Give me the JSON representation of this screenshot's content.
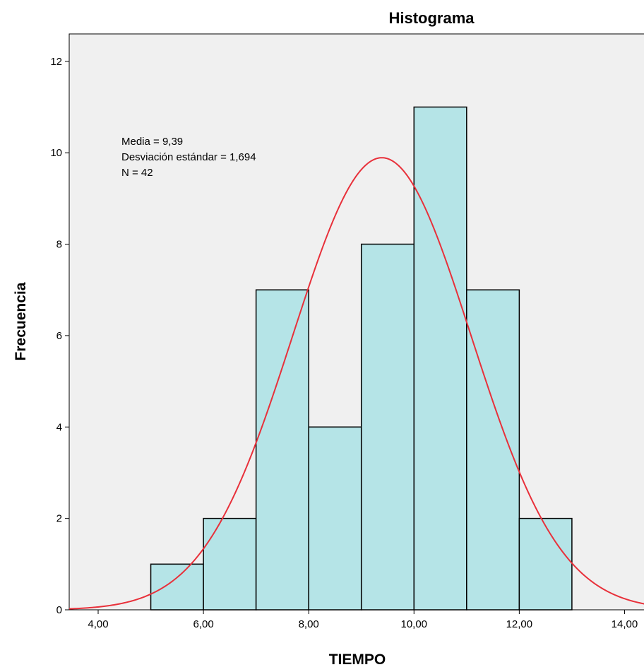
{
  "chart_data": {
    "type": "bar",
    "title": "Histograma",
    "xlabel": "TIEMPO",
    "ylabel": "Frecuencia",
    "bins": [
      {
        "from": 5,
        "to": 6,
        "count": 1
      },
      {
        "from": 6,
        "to": 7,
        "count": 2
      },
      {
        "from": 7,
        "to": 8,
        "count": 7
      },
      {
        "from": 8,
        "to": 9,
        "count": 4
      },
      {
        "from": 9,
        "to": 10,
        "count": 8
      },
      {
        "from": 10,
        "to": 11,
        "count": 11
      },
      {
        "from": 11,
        "to": 12,
        "count": 7
      },
      {
        "from": 12,
        "to": 13,
        "count": 2
      }
    ],
    "x_ticks": [
      {
        "value": 4,
        "label": "4,00"
      },
      {
        "value": 6,
        "label": "6,00"
      },
      {
        "value": 8,
        "label": "8,00"
      },
      {
        "value": 10,
        "label": "10,00"
      },
      {
        "value": 12,
        "label": "12,00"
      },
      {
        "value": 14,
        "label": "14,00"
      }
    ],
    "y_ticks": [
      {
        "value": 0,
        "label": "0"
      },
      {
        "value": 2,
        "label": "2"
      },
      {
        "value": 4,
        "label": "4"
      },
      {
        "value": 6,
        "label": "6"
      },
      {
        "value": 8,
        "label": "8"
      },
      {
        "value": 10,
        "label": "10"
      },
      {
        "value": 12,
        "label": "12"
      }
    ],
    "xlim": [
      3.45,
      14.45
    ],
    "ylim": [
      0,
      12.6
    ],
    "grid": false,
    "normal_curve": {
      "mean": 9.39,
      "sd": 1.694,
      "n": 42,
      "bin_width": 1
    },
    "stats_text": [
      "Media = 9,39",
      "Desviación estándar = 1,694",
      "N = 42"
    ],
    "colors": {
      "bar_fill": "#b5e4e7",
      "bar_stroke": "#000000",
      "curve": "#e8303a",
      "plot_background": "#f0f0f0"
    }
  }
}
